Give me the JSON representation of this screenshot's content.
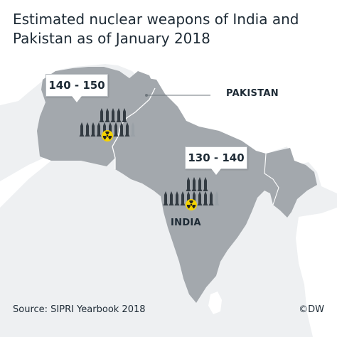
{
  "title": "Estimated nuclear weapons of India and Pakistan as of January 2018",
  "colors": {
    "sea": "#eef0f2",
    "neighbors": "#ffffff",
    "india_pakistan": "#a3a8ad",
    "border": "#ffffff",
    "missile": "#333b42",
    "missile_uncertain": "#9aa1a7",
    "radiation_symbol": "#f5d300",
    "text": "#1d2a35"
  },
  "icons": {
    "missile": "missile-icon",
    "radiation": "radiation-symbol-icon"
  },
  "countries": [
    {
      "name": "PAKISTAN",
      "warheads_range": "140 - 150",
      "warheads_min": 140,
      "warheads_max": 150
    },
    {
      "name": "INDIA",
      "warheads_range": "130 - 140",
      "warheads_min": 130,
      "warheads_max": 140
    }
  ],
  "source": "Source: SIPRI Yearbook 2018",
  "credit": "©DW"
}
